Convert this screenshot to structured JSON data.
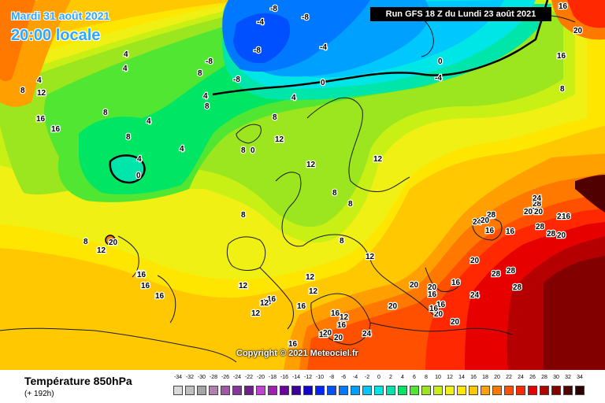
{
  "header": {
    "date_label": "Mardi 31 août 2021",
    "time_label": "20:00 locale",
    "run_label": "Run GFS 18 Z du Lundi 23 août 2021",
    "copyright": "Copyright © 2021 Meteociel.fr"
  },
  "footer": {
    "parameter": "Température 850hPa",
    "lead_time": "(+ 192h)"
  },
  "colors": {
    "map_background": "#ffc800",
    "coastline": "#1a1a1a",
    "freezing_line": "#000000"
  },
  "scale": [
    {
      "label": "-34",
      "color": "#d9d9d9"
    },
    {
      "label": "-32",
      "color": "#bfbfbf"
    },
    {
      "label": "-30",
      "color": "#a6a6a6"
    },
    {
      "label": "-28",
      "color": "#b27fb2"
    },
    {
      "label": "-26",
      "color": "#9b59a6"
    },
    {
      "label": "-24",
      "color": "#83389b"
    },
    {
      "label": "-22",
      "color": "#6e1f8c"
    },
    {
      "label": "-20",
      "color": "#c040d0"
    },
    {
      "label": "-18",
      "color": "#a020b0"
    },
    {
      "label": "-16",
      "color": "#6a00a0"
    },
    {
      "label": "-14",
      "color": "#3a00a0"
    },
    {
      "label": "-12",
      "color": "#1200d0"
    },
    {
      "label": "-10",
      "color": "#0024ff"
    },
    {
      "label": "-8",
      "color": "#0050ff"
    },
    {
      "label": "-6",
      "color": "#0078ff"
    },
    {
      "label": "-4",
      "color": "#00a0ff"
    },
    {
      "label": "-2",
      "color": "#00c8ff"
    },
    {
      "label": "0",
      "color": "#00e6e6"
    },
    {
      "label": "2",
      "color": "#00e6aa"
    },
    {
      "label": "4",
      "color": "#00e664"
    },
    {
      "label": "6",
      "color": "#50e632"
    },
    {
      "label": "8",
      "color": "#9be61e"
    },
    {
      "label": "10",
      "color": "#c8f014"
    },
    {
      "label": "12",
      "color": "#f0f014"
    },
    {
      "label": "14",
      "color": "#ffe600"
    },
    {
      "label": "16",
      "color": "#ffc800"
    },
    {
      "label": "18",
      "color": "#ffa000"
    },
    {
      "label": "20",
      "color": "#ff7800"
    },
    {
      "label": "22",
      "color": "#ff5000"
    },
    {
      "label": "24",
      "color": "#ff2800"
    },
    {
      "label": "26",
      "color": "#e60000"
    },
    {
      "label": "28",
      "color": "#b40000"
    },
    {
      "label": "30",
      "color": "#820000"
    },
    {
      "label": "32",
      "color": "#500000"
    },
    {
      "label": "34",
      "color": "#280000"
    }
  ],
  "isotherm_labels": [
    "-8",
    "-8",
    "-4",
    "-8",
    "-8",
    "-4",
    "-8",
    "0",
    "-4",
    "0",
    "4",
    "4",
    "8",
    "8",
    "4",
    "8",
    "12",
    "16",
    "16",
    "4",
    "8",
    "4",
    "4",
    "8",
    "0",
    "4",
    "8",
    "4",
    "0",
    "8",
    "12",
    "8",
    "12",
    "12",
    "8",
    "8",
    "12",
    "8",
    "12",
    "12",
    "12",
    "8",
    "20",
    "12",
    "16",
    "16",
    "16",
    "16",
    "16",
    "12",
    "16",
    "12",
    "16",
    "12",
    "16",
    "20",
    "20",
    "24",
    "20",
    "20",
    "24",
    "20",
    "20",
    "20",
    "28",
    "28",
    "28",
    "20",
    "16",
    "20",
    "20",
    "28",
    "28",
    "28",
    "24",
    "28",
    "28",
    "24",
    "16",
    "16",
    "8",
    "16",
    "20",
    "16",
    "16",
    "20",
    "16",
    "16",
    "20",
    "16",
    "12",
    "16",
    "16",
    "20",
    "20",
    "16"
  ]
}
